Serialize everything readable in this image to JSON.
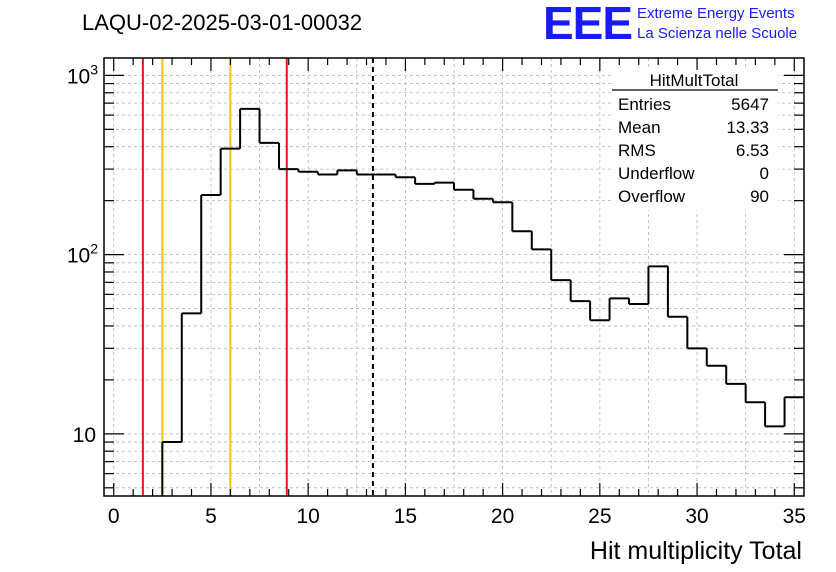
{
  "title": "LAQU-02-2025-03-01-00032",
  "logo": {
    "mark": "EEE",
    "line1": "Extreme Energy Events",
    "line2": "La Scienza nelle Scuole",
    "color": "#1a1aff"
  },
  "stats_box": {
    "name": "HitMultTotal",
    "rows": [
      {
        "label": "Entries",
        "value": "5647"
      },
      {
        "label": "Mean",
        "value": "13.33"
      },
      {
        "label": "RMS",
        "value": "6.53"
      },
      {
        "label": "Underflow",
        "value": "0"
      },
      {
        "label": "Overflow",
        "value": "90"
      }
    ]
  },
  "chart_data": {
    "type": "histogram",
    "xlabel": "Hit multiplicity Total",
    "ylabel": "",
    "xlim": [
      -0.5,
      35.5
    ],
    "ylim": [
      4.5,
      1250
    ],
    "yscale": "log",
    "grid": true,
    "bin_width": 1,
    "bins": [
      {
        "x": 0,
        "value": 0
      },
      {
        "x": 1,
        "value": 0
      },
      {
        "x": 2,
        "value": 0
      },
      {
        "x": 3,
        "value": 9
      },
      {
        "x": 4,
        "value": 47
      },
      {
        "x": 5,
        "value": 215
      },
      {
        "x": 6,
        "value": 390
      },
      {
        "x": 7,
        "value": 650
      },
      {
        "x": 8,
        "value": 420
      },
      {
        "x": 9,
        "value": 300
      },
      {
        "x": 10,
        "value": 290
      },
      {
        "x": 11,
        "value": 280
      },
      {
        "x": 12,
        "value": 295
      },
      {
        "x": 13,
        "value": 280
      },
      {
        "x": 14,
        "value": 280
      },
      {
        "x": 15,
        "value": 270
      },
      {
        "x": 16,
        "value": 248
      },
      {
        "x": 17,
        "value": 252
      },
      {
        "x": 18,
        "value": 230
      },
      {
        "x": 19,
        "value": 205
      },
      {
        "x": 20,
        "value": 196
      },
      {
        "x": 21,
        "value": 135
      },
      {
        "x": 22,
        "value": 107
      },
      {
        "x": 23,
        "value": 72
      },
      {
        "x": 24,
        "value": 55
      },
      {
        "x": 25,
        "value": 43
      },
      {
        "x": 26,
        "value": 57
      },
      {
        "x": 27,
        "value": 53
      },
      {
        "x": 28,
        "value": 86
      },
      {
        "x": 29,
        "value": 45
      },
      {
        "x": 30,
        "value": 30
      },
      {
        "x": 31,
        "value": 24
      },
      {
        "x": 32,
        "value": 19
      },
      {
        "x": 33,
        "value": 15
      },
      {
        "x": 34,
        "value": 11
      },
      {
        "x": 35,
        "value": 16
      }
    ],
    "x_ticks": [
      0,
      5,
      10,
      15,
      20,
      25,
      30,
      35
    ],
    "y_ticks": [
      {
        "value": 10,
        "base": "10",
        "exp": ""
      },
      {
        "value": 100,
        "base": "10",
        "exp": "2"
      },
      {
        "value": 1000,
        "base": "10",
        "exp": "3"
      }
    ],
    "vertical_lines": [
      {
        "x": 1.5,
        "color": "#e8161d",
        "style": "solid"
      },
      {
        "x": 2.5,
        "color": "#f2c300",
        "style": "solid"
      },
      {
        "x": 6,
        "color": "#f2c300",
        "style": "solid"
      },
      {
        "x": 8.9,
        "color": "#e8161d",
        "style": "solid"
      },
      {
        "x": 13.33,
        "color": "#000000",
        "style": "dashed"
      }
    ],
    "line_color": "#000000",
    "grid_color": "#b4b4b4"
  }
}
